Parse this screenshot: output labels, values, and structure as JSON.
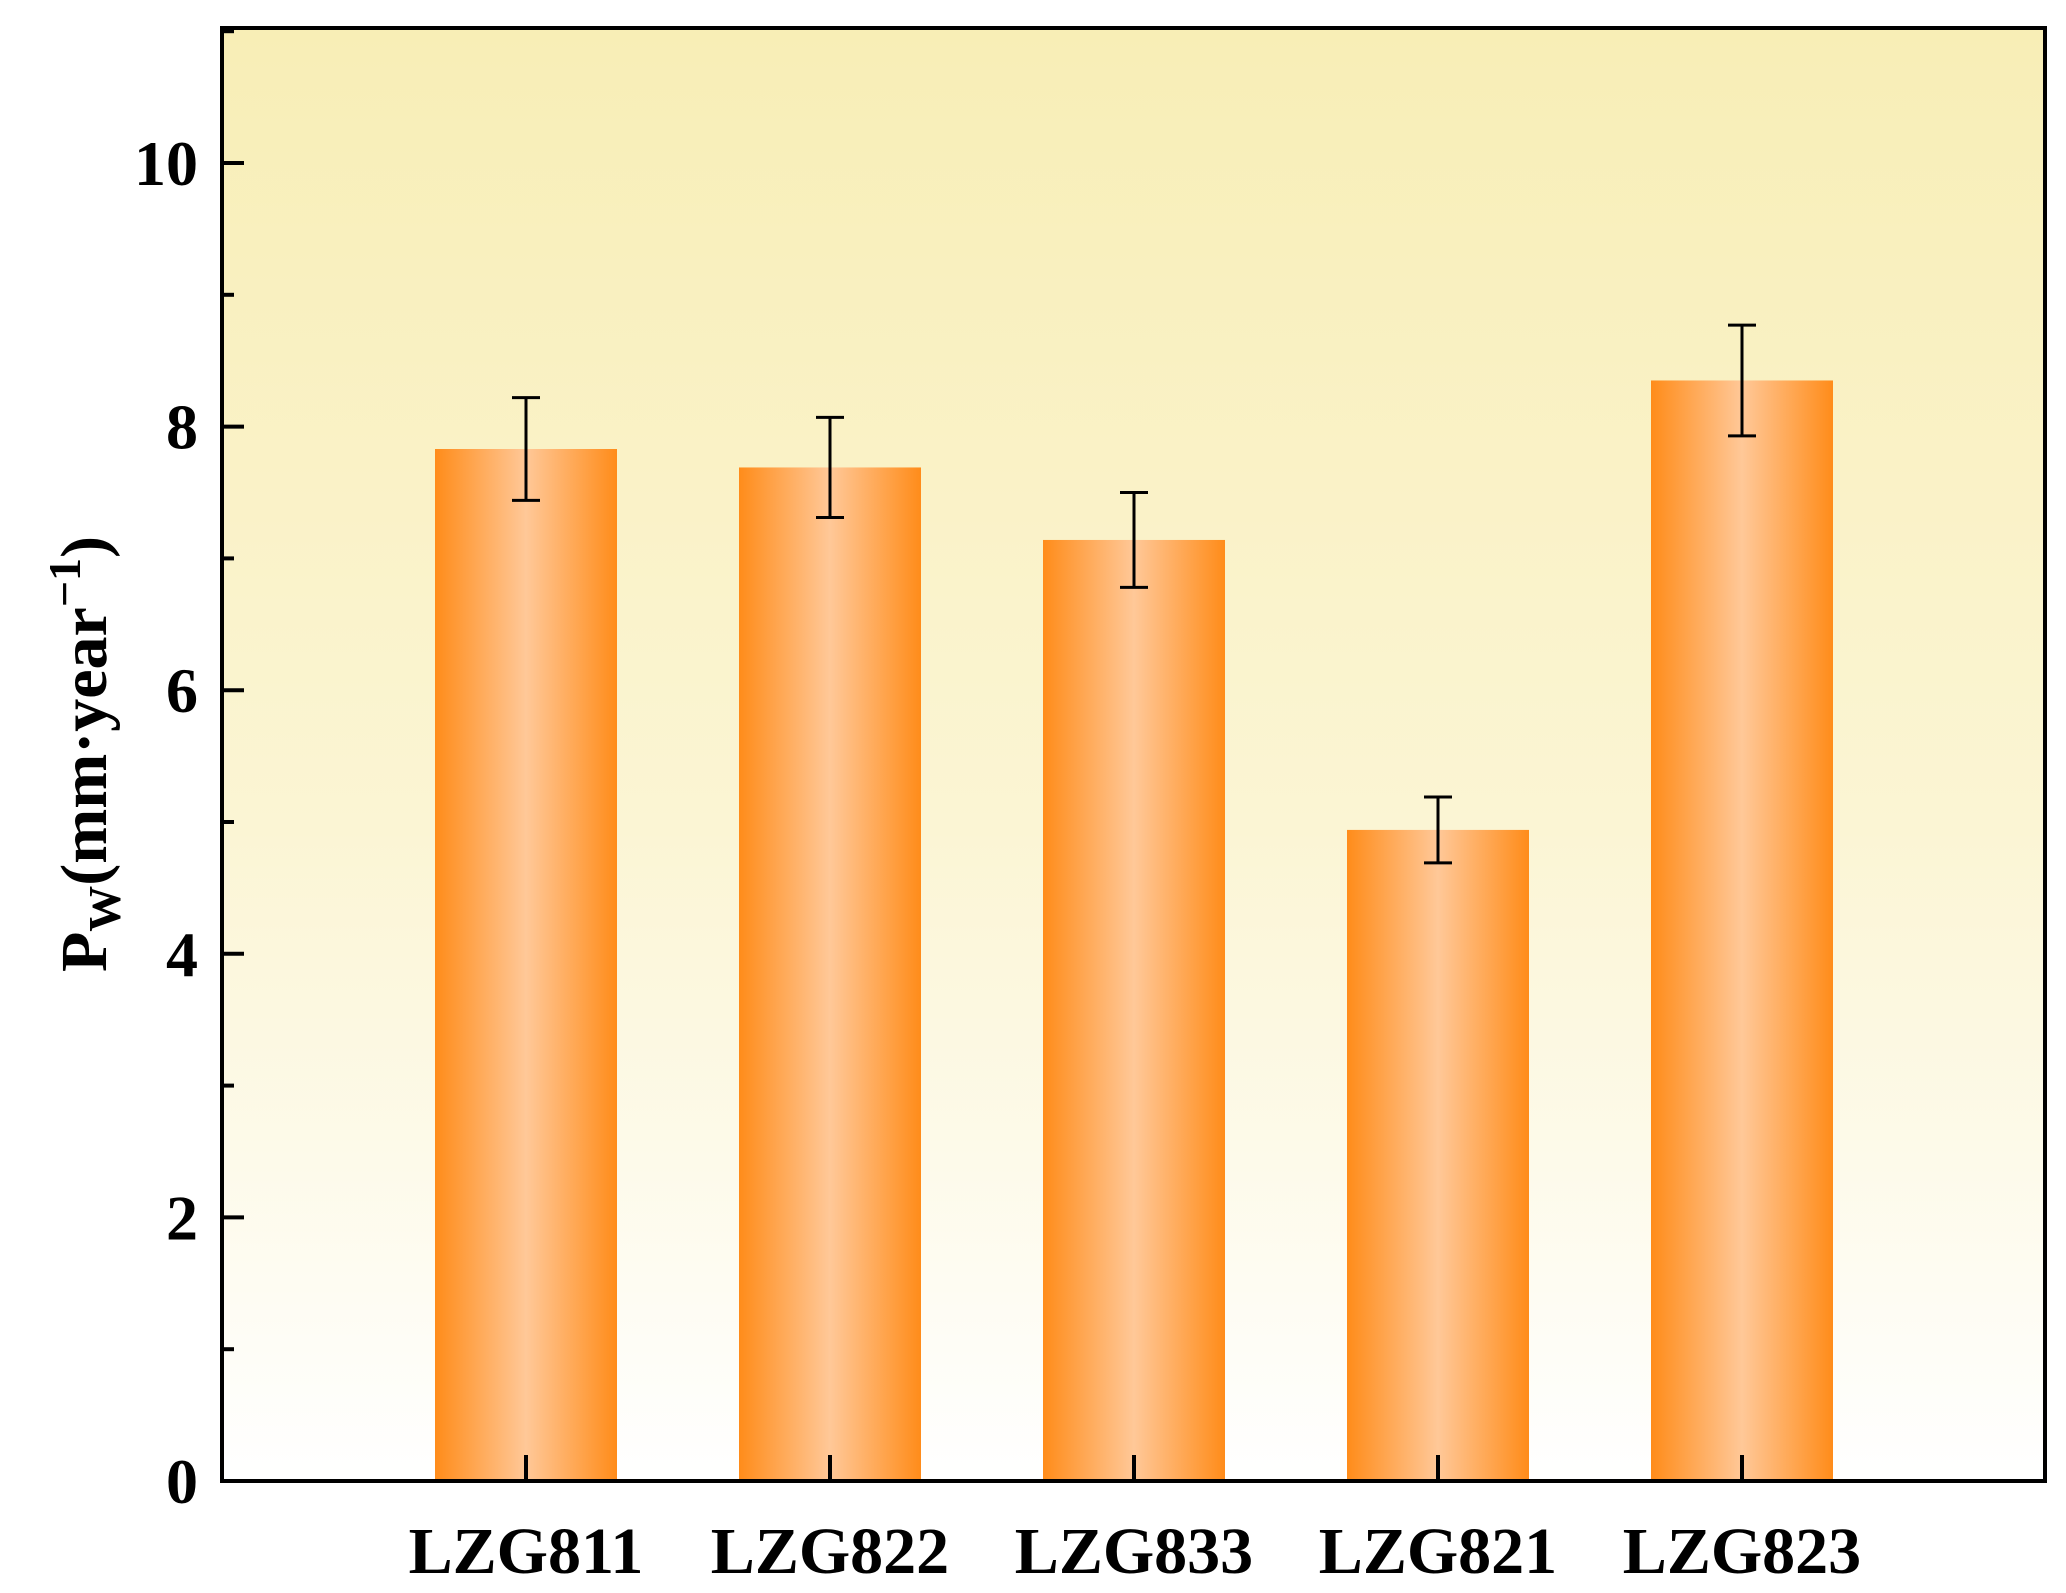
{
  "chart_data": {
    "type": "bar",
    "categories": [
      "LZG811",
      "LZG822",
      "LZG833",
      "LZG821",
      "LZG823"
    ],
    "values": [
      7.83,
      7.69,
      7.14,
      4.94,
      8.35
    ],
    "errors": [
      0.39,
      0.38,
      0.36,
      0.25,
      0.42
    ],
    "title": "",
    "xlabel": "",
    "ylabel": {
      "symbol": "P",
      "subscript": "W",
      "unit": "(mm·year",
      "exponent": "−1",
      "close": ")"
    },
    "ylim": [
      0,
      11
    ],
    "yticks": [
      "0",
      "2",
      "4",
      "6",
      "8",
      "10"
    ],
    "grid": false,
    "legend": "none",
    "colors": {
      "bar_edge": "#ff8c1a",
      "bar_center": "#ffc898",
      "background_top": "#f8eeb6",
      "background_bottom": "#ffffff",
      "axis": "#000000"
    }
  }
}
